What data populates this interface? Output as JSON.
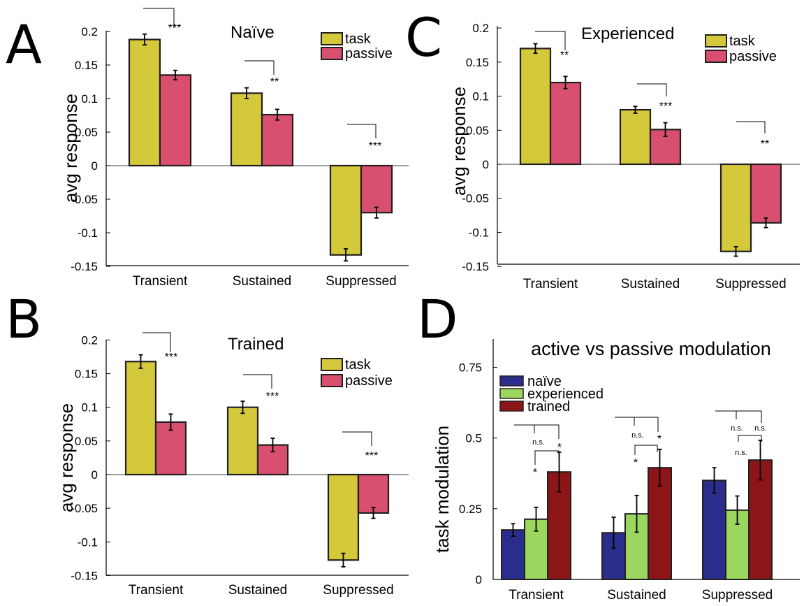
{
  "colors": {
    "task": "#d4c93b",
    "passive": "#d94f6f",
    "naive": "#2b2d8c",
    "experienced": "#9bd65e",
    "trained": "#8c1518"
  },
  "chart_data": [
    {
      "panel": "A",
      "type": "bar",
      "title": "Naïve",
      "ylabel": "avg response",
      "xlabel": "",
      "ylim": [
        -0.15,
        0.2
      ],
      "yticks": [
        "0.2",
        "0.15",
        "0.1",
        "0.05",
        "0",
        "-0.05",
        "-0.1",
        "-0.15"
      ],
      "ytick_values": [
        0.2,
        0.15,
        0.1,
        0.05,
        0,
        -0.05,
        -0.1,
        -0.15
      ],
      "categories": [
        "Transient",
        "Sustained",
        "Suppressed"
      ],
      "legend": [
        "task",
        "passive"
      ],
      "legend_position": "top-right",
      "series": [
        {
          "name": "task",
          "values": [
            0.188,
            0.108,
            -0.133
          ],
          "errors": [
            0.008,
            0.008,
            0.009
          ]
        },
        {
          "name": "passive",
          "values": [
            0.135,
            0.076,
            -0.07
          ],
          "errors": [
            0.007,
            0.008,
            0.008
          ]
        }
      ],
      "significance": [
        "***",
        "**",
        "***"
      ]
    },
    {
      "panel": "B",
      "type": "bar",
      "title": "Trained",
      "ylabel": "avg response",
      "xlabel": "",
      "ylim": [
        -0.15,
        0.2
      ],
      "yticks": [
        "0.2",
        "0.15",
        "0.1",
        "0.05",
        "0",
        "-0.05",
        "-0.1",
        "-0.15"
      ],
      "ytick_values": [
        0.2,
        0.15,
        0.1,
        0.05,
        0,
        -0.05,
        -0.1,
        -0.15
      ],
      "categories": [
        "Transient",
        "Sustained",
        "Suppressed"
      ],
      "legend": [
        "task",
        "passive"
      ],
      "legend_position": "top-right",
      "series": [
        {
          "name": "task",
          "values": [
            0.168,
            0.1,
            -0.127
          ],
          "errors": [
            0.01,
            0.009,
            0.01
          ]
        },
        {
          "name": "passive",
          "values": [
            0.078,
            0.044,
            -0.057
          ],
          "errors": [
            0.012,
            0.01,
            0.008
          ]
        }
      ],
      "significance": [
        "***",
        "***",
        "***"
      ]
    },
    {
      "panel": "C",
      "type": "bar",
      "title": "Experienced",
      "ylabel": "avg response",
      "xlabel": "",
      "ylim": [
        -0.15,
        0.2
      ],
      "yticks": [
        "0.2",
        "0.15",
        "0.1",
        "0.05",
        "0",
        "-0.05",
        "-0.1",
        "-0.15"
      ],
      "ytick_values": [
        0.2,
        0.15,
        0.1,
        0.05,
        0,
        -0.05,
        -0.1,
        -0.15
      ],
      "categories": [
        "Transient",
        "Sustained",
        "Suppressed"
      ],
      "legend": [
        "task",
        "passive"
      ],
      "legend_position": "top-right",
      "series": [
        {
          "name": "task",
          "values": [
            0.17,
            0.08,
            -0.128
          ],
          "errors": [
            0.007,
            0.005,
            0.007
          ]
        },
        {
          "name": "passive",
          "values": [
            0.12,
            0.051,
            -0.086
          ],
          "errors": [
            0.009,
            0.01,
            0.007
          ]
        }
      ],
      "significance": [
        "**",
        "***",
        "**"
      ]
    },
    {
      "panel": "D",
      "type": "bar",
      "title": "active vs passive modulation",
      "ylabel": "task  modulation",
      "xlabel": "",
      "ylim": [
        0,
        0.85
      ],
      "yticks": [
        "0.75",
        "0.5",
        "0.25",
        "0"
      ],
      "ytick_values": [
        0.75,
        0.5,
        0.25,
        0
      ],
      "categories": [
        "Transient",
        "Sustained",
        "Suppressed"
      ],
      "legend": [
        "naïve",
        "experienced",
        "trained"
      ],
      "legend_position": "top-left",
      "series": [
        {
          "name": "naïve",
          "values": [
            0.175,
            0.165,
            0.35
          ],
          "errors": [
            0.022,
            0.055,
            0.045
          ]
        },
        {
          "name": "experienced",
          "values": [
            0.213,
            0.232,
            0.245
          ],
          "errors": [
            0.042,
            0.065,
            0.05
          ]
        },
        {
          "name": "trained",
          "values": [
            0.38,
            0.395,
            0.422
          ],
          "errors": [
            0.07,
            0.065,
            0.07
          ]
        }
      ],
      "significance": [
        {
          "wide": "n.s.",
          "right": "*",
          "lower": "*"
        },
        {
          "wide": "n.s.",
          "right": "*",
          "lower": "*"
        },
        {
          "wide": "n.s.",
          "right": "n.s.",
          "lower": "n.s."
        }
      ]
    }
  ]
}
